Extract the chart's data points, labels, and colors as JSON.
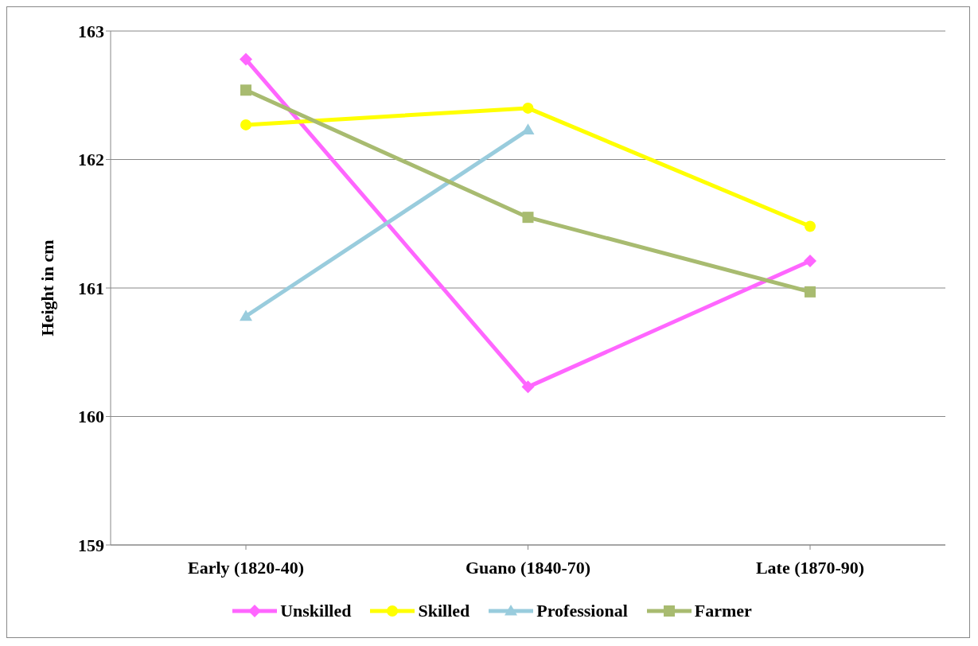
{
  "chart_data": {
    "type": "line",
    "ylabel": "Height in cm",
    "categories": [
      "Early (1820-40)",
      "Guano (1840-70)",
      "Late (1870-90)"
    ],
    "series": [
      {
        "name": "Unskilled",
        "color": "#ff66ff",
        "marker": "diamond",
        "values": [
          162.78,
          160.23,
          161.21
        ]
      },
      {
        "name": "Skilled",
        "color": "#ffff00",
        "marker": "circle",
        "values": [
          162.27,
          162.4,
          161.48
        ]
      },
      {
        "name": "Professional",
        "color": "#99ccdd",
        "marker": "triangle",
        "values": [
          160.78,
          162.23,
          null
        ]
      },
      {
        "name": "Farmer",
        "color": "#a8bb70",
        "marker": "square",
        "values": [
          162.54,
          161.55,
          160.97
        ]
      }
    ],
    "ylim": [
      159,
      163
    ],
    "yticks": [
      159,
      160,
      161,
      162,
      163
    ],
    "grid": "y",
    "legend": "bottom"
  }
}
